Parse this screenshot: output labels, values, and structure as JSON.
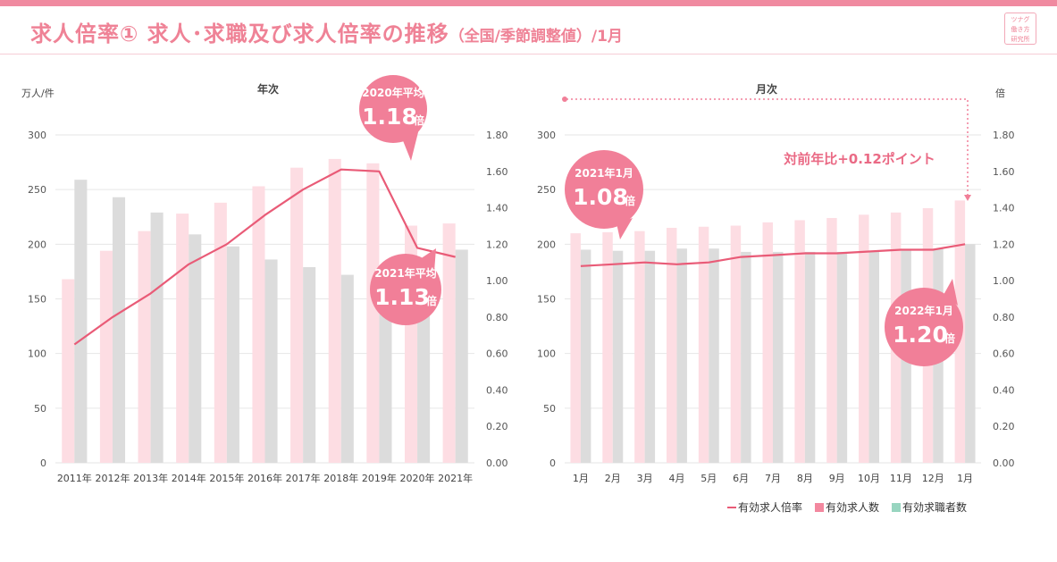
{
  "header": {
    "title_main": "求人倍率① 求人･求職及び求人倍率の推移",
    "title_sub": "（全国/季節調整値）/1月",
    "logo_lines": [
      "ツナグ",
      "働き方",
      "研究所"
    ]
  },
  "colors": {
    "accent": "#ef8296",
    "openings_bar": "#fddde3",
    "seekers_bar": "#dcdcdc",
    "ratio_line": "#e95b77",
    "bubble": "#f17f98",
    "legend_seekers": "#98d5c0"
  },
  "left_chart": {
    "subtitle": "年次",
    "y_left_unit": "万人/件"
  },
  "right_chart": {
    "subtitle": "月次",
    "y_right_unit": "倍",
    "yoy_note": "対前年比+0.12ポイント"
  },
  "callouts": {
    "l2020": {
      "label": "2020年平均",
      "value": "1.18",
      "unit": "倍"
    },
    "l2021": {
      "label": "2021年平均",
      "value": "1.13",
      "unit": "倍"
    },
    "r2021": {
      "label": "2021年1月",
      "value": "1.08",
      "unit": "倍"
    },
    "r2022": {
      "label": "2022年1月",
      "value": "1.20",
      "unit": "倍"
    }
  },
  "legend": {
    "ratio": "有効求人倍率",
    "openings": "有効求人数",
    "seekers": "有効求職者数"
  },
  "chart_data": [
    {
      "type": "bar",
      "title": "年次",
      "ylabel": "万人/件",
      "ylim": [
        0,
        300
      ],
      "y_ticks": [
        "0",
        "50",
        "100",
        "150",
        "200",
        "250",
        "300"
      ],
      "y2lim": [
        0,
        1.8
      ],
      "y2_ticks": [
        "0.00",
        "0.20",
        "0.40",
        "0.60",
        "0.80",
        "1.00",
        "1.20",
        "1.40",
        "1.60",
        "1.80"
      ],
      "categories": [
        "2011年",
        "2012年",
        "2013年",
        "2014年",
        "2015年",
        "2016年",
        "2017年",
        "2018年",
        "2019年",
        "2020年",
        "2021年"
      ],
      "series": [
        {
          "name": "有効求人数",
          "kind": "bar",
          "values": [
            168,
            194,
            212,
            228,
            238,
            253,
            270,
            278,
            274,
            217,
            219
          ]
        },
        {
          "name": "有効求職者数",
          "kind": "bar",
          "values": [
            259,
            243,
            229,
            209,
            198,
            186,
            179,
            172,
            168,
            185,
            195
          ]
        },
        {
          "name": "有効求人倍率",
          "kind": "line",
          "axis": "right",
          "values": [
            0.65,
            0.8,
            0.93,
            1.09,
            1.2,
            1.36,
            1.5,
            1.61,
            1.6,
            1.18,
            1.13
          ]
        }
      ],
      "grid": true
    },
    {
      "type": "bar",
      "title": "月次",
      "ylabel": "倍",
      "ylim": [
        0,
        300
      ],
      "y_ticks": [
        "0",
        "50",
        "100",
        "150",
        "200",
        "250",
        "300"
      ],
      "y2lim": [
        0,
        1.8
      ],
      "y2_ticks": [
        "0.00",
        "0.20",
        "0.40",
        "0.60",
        "0.80",
        "1.00",
        "1.20",
        "1.40",
        "1.60",
        "1.80"
      ],
      "categories": [
        "1月",
        "2月",
        "3月",
        "4月",
        "5月",
        "6月",
        "7月",
        "8月",
        "9月",
        "10月",
        "11月",
        "12月",
        "1月"
      ],
      "series": [
        {
          "name": "有効求人数",
          "kind": "bar",
          "values": [
            210,
            211,
            212,
            215,
            216,
            217,
            220,
            222,
            224,
            227,
            229,
            233,
            240
          ]
        },
        {
          "name": "有効求職者数",
          "kind": "bar",
          "values": [
            195,
            194,
            194,
            196,
            196,
            193,
            193,
            193,
            193,
            193,
            195,
            196,
            200
          ]
        },
        {
          "name": "有効求人倍率",
          "kind": "line",
          "axis": "right",
          "values": [
            1.08,
            1.09,
            1.1,
            1.09,
            1.1,
            1.13,
            1.14,
            1.15,
            1.15,
            1.16,
            1.17,
            1.17,
            1.2
          ]
        }
      ],
      "grid": true
    }
  ]
}
